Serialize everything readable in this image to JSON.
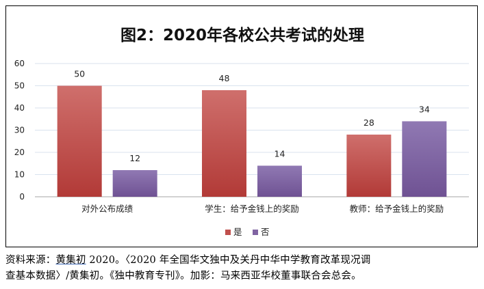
{
  "chart_data": {
    "type": "bar",
    "title": "图2：2020年各校公共考试的处理",
    "categories": [
      "对外公布成绩",
      "学生：给予金钱上的奖励",
      "教师：给予金钱上的奖励"
    ],
    "series": [
      {
        "name": "是",
        "values": [
          50,
          48,
          28
        ],
        "color": "#c0504d"
      },
      {
        "name": "否",
        "values": [
          12,
          14,
          34
        ],
        "color": "#8064a2"
      }
    ],
    "ylim": [
      0,
      60
    ],
    "yticks": [
      0,
      10,
      20,
      30,
      40,
      50,
      60
    ],
    "grid": true,
    "legend": "bottom",
    "data_labels": true
  },
  "source": {
    "prefix": "资料来源：",
    "author_link": "黄集初",
    "rest_line1": " 2020。〈2020 年全国华文独中及关丹中华中学教育改革现况调",
    "line2": "查基本数据〉/黄集初。《独中教育专刊》。加影：马来西亚华校董事联合会总会。"
  }
}
